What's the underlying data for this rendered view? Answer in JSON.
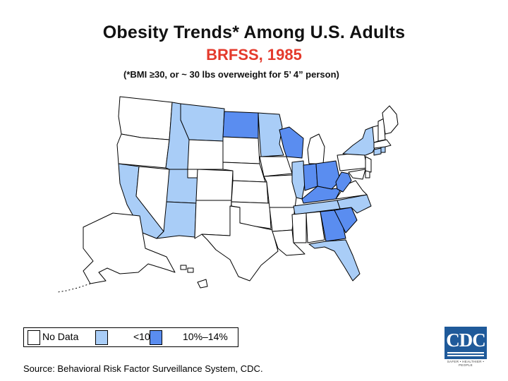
{
  "title": "Obesity Trends* Among U.S. Adults",
  "subtitle": "BRFSS, 1985",
  "note": "(*BMI ≥30, or ~ 30 lbs overweight for 5’ 4” person)",
  "colors": {
    "no_data": "#ffffff",
    "lt10": "#a9cdf7",
    "p10_14": "#5a8df0",
    "title": "#111111",
    "subtitle": "#e43a2c",
    "outline": "#000000"
  },
  "legend": {
    "no_data": "No Data",
    "lt10": "<10%",
    "p10_14": "10%–14%"
  },
  "source": "Source: Behavioral Risk Factor Surveillance System, CDC.",
  "logo": {
    "text": "CDC",
    "tagline": "SAFER • HEALTHIER • PEOPLE"
  },
  "states": [
    {
      "name": "Washington",
      "category": "no_data"
    },
    {
      "name": "Oregon",
      "category": "no_data"
    },
    {
      "name": "California",
      "category": "lt10"
    },
    {
      "name": "Nevada",
      "category": "no_data"
    },
    {
      "name": "Idaho",
      "category": "lt10"
    },
    {
      "name": "Montana",
      "category": "lt10"
    },
    {
      "name": "Wyoming",
      "category": "no_data"
    },
    {
      "name": "Utah",
      "category": "lt10"
    },
    {
      "name": "Arizona",
      "category": "lt10"
    },
    {
      "name": "Colorado",
      "category": "no_data"
    },
    {
      "name": "New Mexico",
      "category": "no_data"
    },
    {
      "name": "North Dakota",
      "category": "p10_14"
    },
    {
      "name": "South Dakota",
      "category": "no_data"
    },
    {
      "name": "Nebraska",
      "category": "no_data"
    },
    {
      "name": "Kansas",
      "category": "no_data"
    },
    {
      "name": "Oklahoma",
      "category": "no_data"
    },
    {
      "name": "Texas",
      "category": "no_data"
    },
    {
      "name": "Minnesota",
      "category": "lt10"
    },
    {
      "name": "Iowa",
      "category": "no_data"
    },
    {
      "name": "Missouri",
      "category": "no_data"
    },
    {
      "name": "Arkansas",
      "category": "no_data"
    },
    {
      "name": "Louisiana",
      "category": "no_data"
    },
    {
      "name": "Wisconsin",
      "category": "p10_14"
    },
    {
      "name": "Illinois",
      "category": "lt10"
    },
    {
      "name": "Michigan",
      "category": "no_data"
    },
    {
      "name": "Indiana",
      "category": "p10_14"
    },
    {
      "name": "Ohio",
      "category": "p10_14"
    },
    {
      "name": "Kentucky",
      "category": "p10_14"
    },
    {
      "name": "Tennessee",
      "category": "lt10"
    },
    {
      "name": "Mississippi",
      "category": "no_data"
    },
    {
      "name": "Alabama",
      "category": "no_data"
    },
    {
      "name": "Georgia",
      "category": "p10_14"
    },
    {
      "name": "Florida",
      "category": "lt10"
    },
    {
      "name": "South Carolina",
      "category": "p10_14"
    },
    {
      "name": "North Carolina",
      "category": "lt10"
    },
    {
      "name": "Virginia",
      "category": "no_data"
    },
    {
      "name": "West Virginia",
      "category": "p10_14"
    },
    {
      "name": "Pennsylvania",
      "category": "no_data"
    },
    {
      "name": "New York",
      "category": "lt10"
    },
    {
      "name": "Vermont",
      "category": "no_data"
    },
    {
      "name": "New Hampshire",
      "category": "no_data"
    },
    {
      "name": "Maine",
      "category": "no_data"
    },
    {
      "name": "Massachusetts",
      "category": "no_data"
    },
    {
      "name": "Connecticut",
      "category": "lt10"
    },
    {
      "name": "Rhode Island",
      "category": "lt10"
    },
    {
      "name": "New Jersey",
      "category": "no_data"
    },
    {
      "name": "Delaware",
      "category": "no_data"
    },
    {
      "name": "Maryland",
      "category": "no_data"
    },
    {
      "name": "Alaska",
      "category": "no_data"
    },
    {
      "name": "Hawaii",
      "category": "no_data"
    }
  ]
}
